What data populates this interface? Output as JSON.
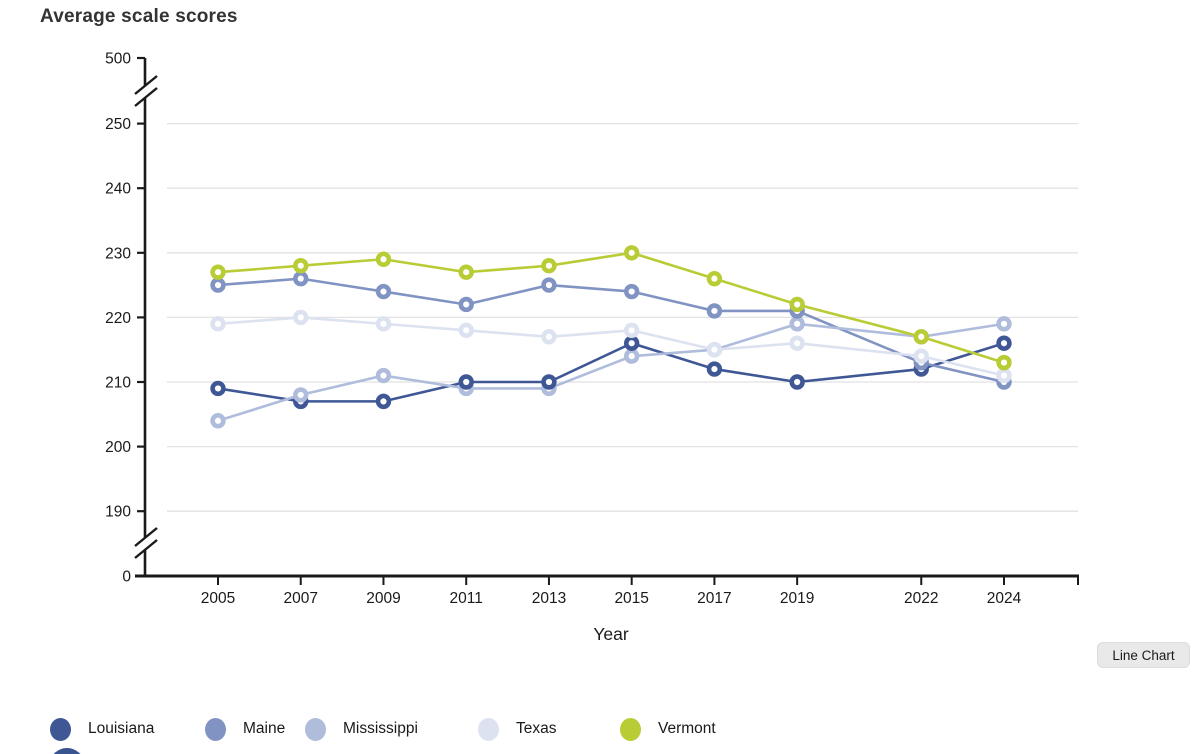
{
  "page": {
    "title": "Average scale scores"
  },
  "chart_data": {
    "type": "line",
    "title": "Average scale scores",
    "xlabel": "Year",
    "x": [
      2005,
      2007,
      2009,
      2011,
      2013,
      2015,
      2017,
      2019,
      2022,
      2024
    ],
    "y_axis": {
      "visible_ticks": [
        190,
        200,
        210,
        220,
        230,
        240,
        250
      ],
      "top_label": "500",
      "bottom_label": "0",
      "axis_break": true
    },
    "grid": "horizontal",
    "legend_position": "bottom",
    "series": [
      {
        "name": "Louisiana",
        "color": "#3f5795",
        "values": [
          209,
          207,
          207,
          210,
          210,
          216,
          212,
          210,
          212,
          216
        ]
      },
      {
        "name": "Maine",
        "color": "#8093c2",
        "values": [
          225,
          226,
          224,
          222,
          225,
          224,
          221,
          221,
          213,
          210
        ]
      },
      {
        "name": "Mississippi",
        "color": "#afbcdc",
        "values": [
          204,
          208,
          211,
          209,
          209,
          214,
          215,
          219,
          217,
          219
        ]
      },
      {
        "name": "Texas",
        "color": "#dde2f0",
        "values": [
          219,
          220,
          219,
          218,
          217,
          218,
          215,
          216,
          214,
          211
        ]
      },
      {
        "name": "Vermont",
        "color": "#b9cc35",
        "values": [
          227,
          228,
          229,
          227,
          228,
          230,
          226,
          222,
          217,
          213
        ]
      }
    ]
  },
  "controls": {
    "chart_type_button": "Line Chart"
  },
  "colors": {
    "axis": "#1a1a1a",
    "gridline": "#e2e2e2",
    "partial_dot": "#3a5490"
  }
}
